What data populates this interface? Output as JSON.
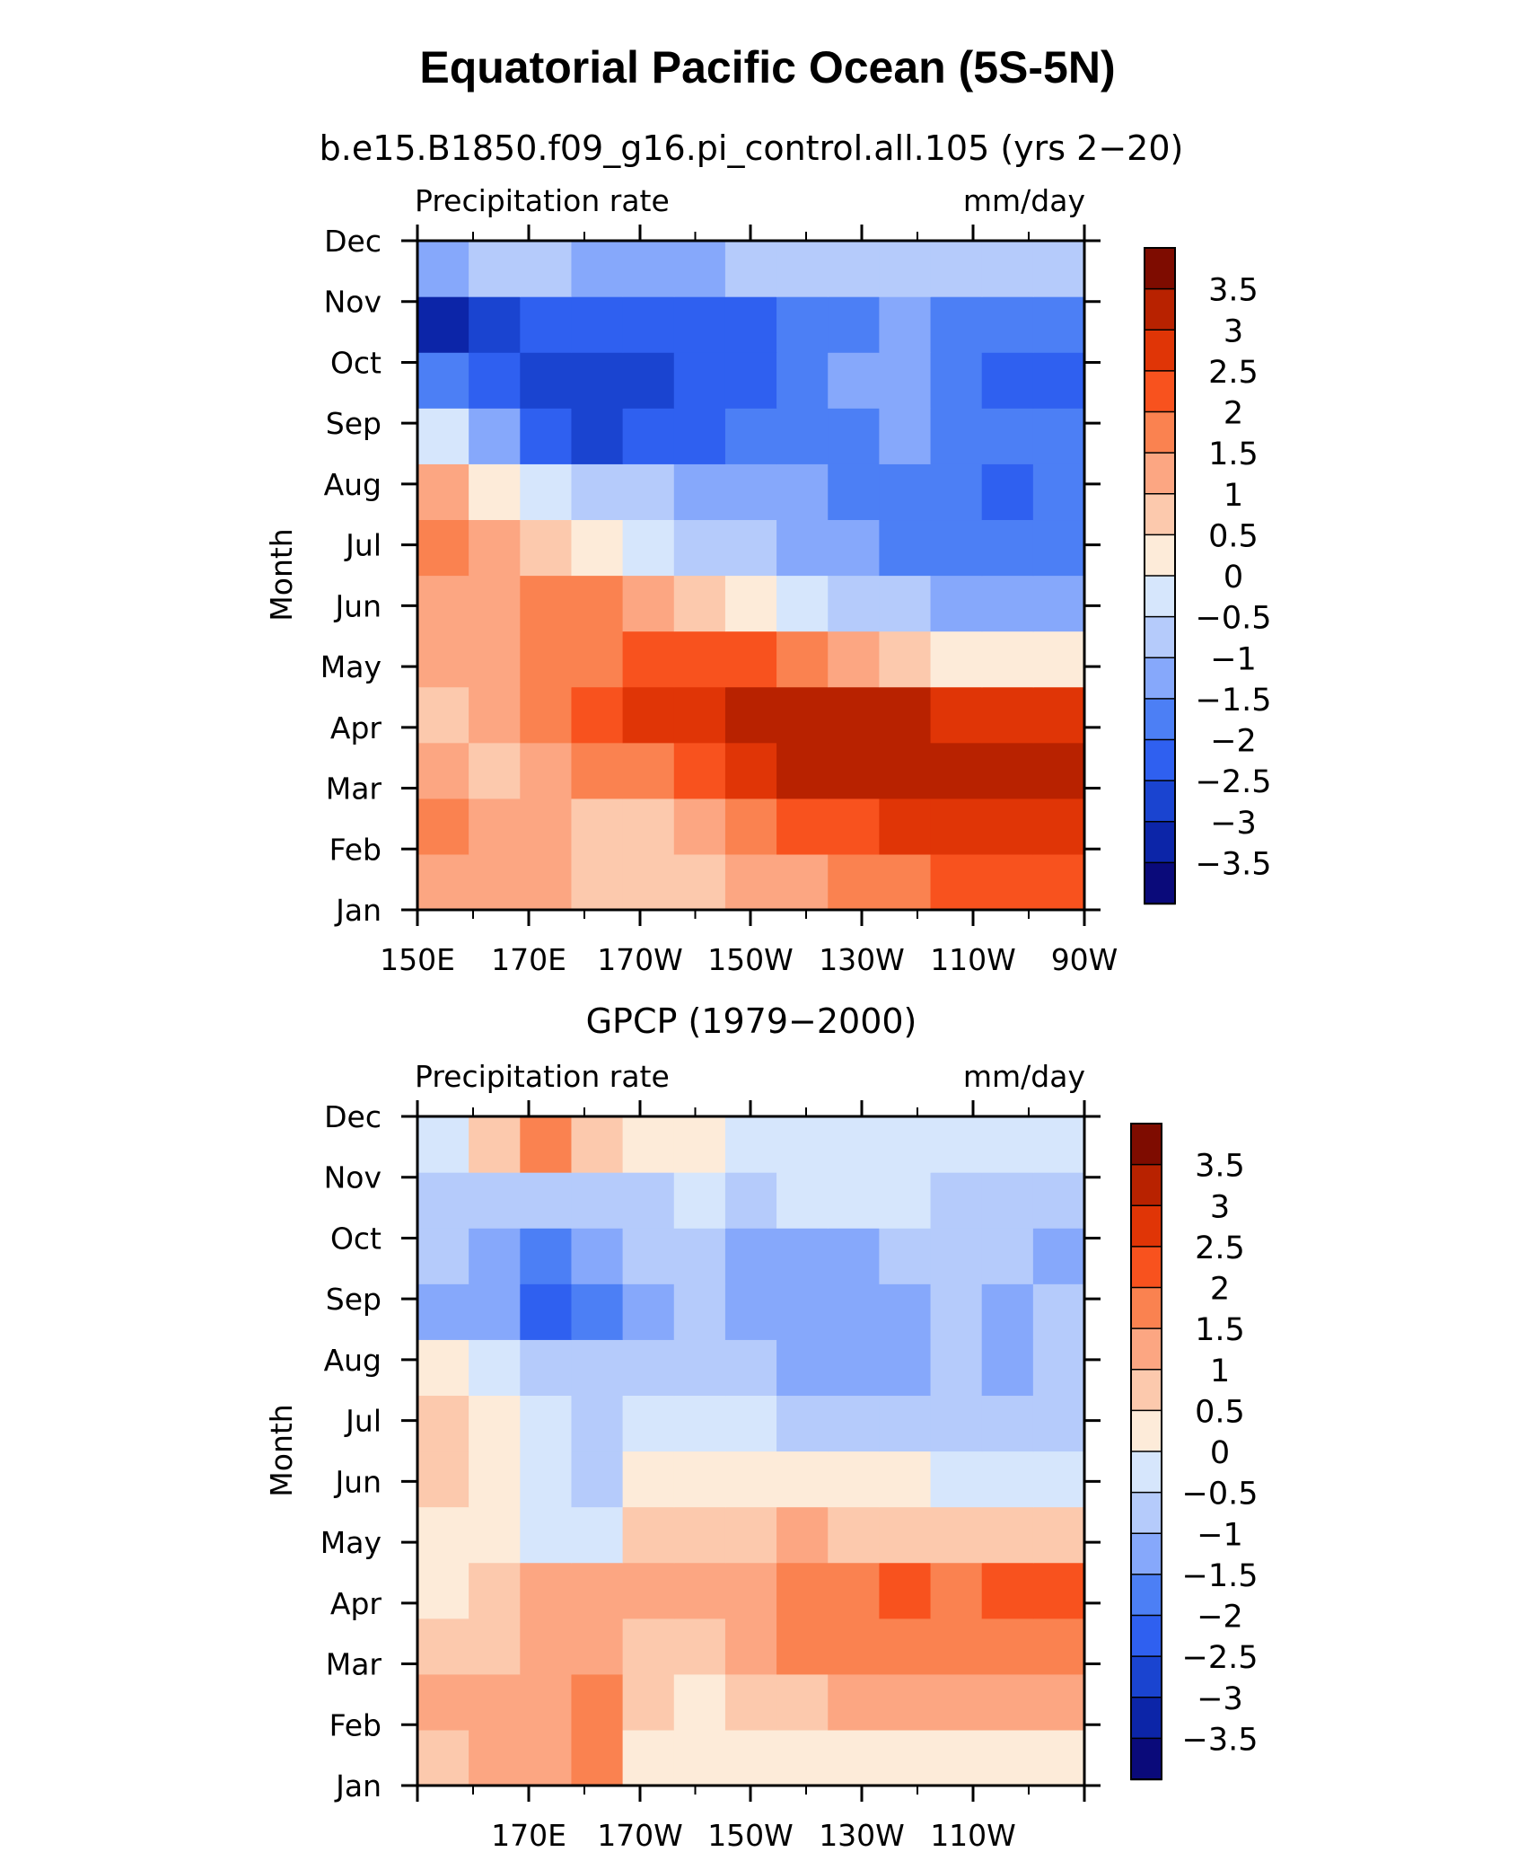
{
  "title": "Equatorial Pacific Ocean (5S-5N)",
  "colorbar": {
    "levels": [
      "3.5",
      "3",
      "2.5",
      "2",
      "1.5",
      "1",
      "0.5",
      "0",
      "−0.5",
      "−1",
      "−1.5",
      "−2",
      "−2.5",
      "−3",
      "−3.5"
    ],
    "colors": [
      "#0a0a7a",
      "#0c25a8",
      "#1a44d0",
      "#2f60f0",
      "#4c7ff5",
      "#86a8fb",
      "#b5cbfb",
      "#d6e6fc",
      "#fdebd9",
      "#fcc9ad",
      "#fca682",
      "#fa8250",
      "#f8521e",
      "#e03506",
      "#b82200",
      "#7e0c00"
    ]
  },
  "panels": [
    {
      "subtitle": "b.e15.B1850.f09_g16.pi_control.all.105 (yrs 2−20)",
      "left_label": "Precipitation rate",
      "right_label": "mm/day",
      "ylabel": "Month",
      "months": [
        "Jan",
        "Feb",
        "Mar",
        "Apr",
        "May",
        "Jun",
        "Jul",
        "Aug",
        "Sep",
        "Oct",
        "Nov",
        "Dec"
      ],
      "xticks": [
        "150E",
        "170E",
        "170W",
        "150W",
        "130W",
        "110W",
        "90W"
      ]
    },
    {
      "subtitle": "GPCP (1979−2000)",
      "left_label": "Precipitation rate",
      "right_label": "mm/day",
      "ylabel": "Month",
      "months": [
        "Jan",
        "Feb",
        "Mar",
        "Apr",
        "May",
        "Jun",
        "Jul",
        "Aug",
        "Sep",
        "Oct",
        "Nov",
        "Dec"
      ],
      "xticks": [
        "170E",
        "170W",
        "150W",
        "130W",
        "110W"
      ]
    }
  ],
  "chart_data": [
    {
      "type": "heatmap",
      "title": "b.e15.B1850.f09_g16.pi_control.all.105 (yrs 2−20)",
      "xlabel": "",
      "ylabel": "Month",
      "units": "mm/day",
      "x": [
        150,
        160,
        170,
        180,
        190,
        200,
        210,
        220,
        230,
        240,
        250,
        260,
        270
      ],
      "y": [
        "Jan",
        "Feb",
        "Mar",
        "Apr",
        "May",
        "Jun",
        "Jul",
        "Aug",
        "Sep",
        "Oct",
        "Nov",
        "Dec"
      ],
      "values": [
        [
          1.3,
          1.1,
          1.4,
          0.6,
          0.8,
          0.9,
          1.0,
          1.2,
          1.6,
          1.8,
          2.0,
          2.2,
          2.3
        ],
        [
          1.6,
          1.4,
          1.2,
          0.9,
          0.6,
          1.1,
          1.6,
          2.0,
          2.4,
          2.6,
          2.7,
          2.8,
          2.9
        ],
        [
          1.0,
          0.6,
          1.3,
          1.5,
          1.8,
          2.2,
          2.6,
          3.0,
          3.1,
          3.2,
          3.1,
          3.2,
          3.3
        ],
        [
          0.7,
          1.2,
          1.6,
          2.0,
          2.5,
          2.8,
          3.0,
          3.3,
          3.3,
          3.1,
          2.9,
          2.8,
          2.7
        ],
        [
          1.2,
          1.0,
          1.5,
          1.8,
          2.1,
          2.3,
          2.1,
          1.8,
          1.3,
          0.9,
          0.4,
          0.2,
          0.3
        ],
        [
          1.4,
          1.2,
          1.6,
          1.5,
          1.2,
          0.8,
          0.2,
          -0.3,
          -0.7,
          -1.0,
          -1.2,
          -1.2,
          -1.1
        ],
        [
          1.9,
          1.2,
          0.6,
          0.2,
          -0.2,
          -0.6,
          -0.9,
          -1.2,
          -1.4,
          -1.6,
          -1.8,
          -2.0,
          -1.8
        ],
        [
          1.2,
          0.3,
          -0.4,
          -0.8,
          -1.0,
          -1.2,
          -1.4,
          -1.5,
          -1.6,
          -1.7,
          -1.8,
          -2.1,
          -1.9
        ],
        [
          -0.3,
          -1.2,
          -2.3,
          -2.6,
          -2.4,
          -2.1,
          -2.0,
          -1.7,
          -1.6,
          -1.5,
          -1.7,
          -2.0,
          -2.0
        ],
        [
          -1.9,
          -2.3,
          -2.8,
          -2.8,
          -2.6,
          -2.2,
          -2.1,
          -1.8,
          -1.5,
          -1.3,
          -1.6,
          -2.1,
          -2.2
        ],
        [
          -3.1,
          -2.6,
          -2.4,
          -2.4,
          -2.3,
          -2.3,
          -2.2,
          -2.0,
          -1.7,
          -1.4,
          -1.6,
          -1.9,
          -2.0
        ],
        [
          -1.1,
          -0.6,
          -0.8,
          -1.2,
          -1.3,
          -1.2,
          -1.0,
          -0.9,
          -0.8,
          -0.8,
          -0.8,
          -0.9,
          -0.9
        ]
      ],
      "levels": [
        -3.5,
        -3,
        -2.5,
        -2,
        -1.5,
        -1,
        -0.5,
        0,
        0.5,
        1,
        1.5,
        2,
        2.5,
        3,
        3.5
      ]
    },
    {
      "type": "heatmap",
      "title": "GPCP (1979−2000)",
      "xlabel": "",
      "ylabel": "Month",
      "units": "mm/day",
      "x": [
        150,
        160,
        170,
        180,
        190,
        200,
        210,
        220,
        230,
        240,
        250,
        260,
        270
      ],
      "y": [
        "Jan",
        "Feb",
        "Mar",
        "Apr",
        "May",
        "Jun",
        "Jul",
        "Aug",
        "Sep",
        "Oct",
        "Nov",
        "Dec"
      ],
      "values": [
        [
          0.6,
          1.0,
          1.4,
          1.7,
          0.4,
          0.2,
          0.2,
          0.2,
          0.1,
          0.1,
          0.2,
          0.2,
          0.3
        ],
        [
          1.2,
          1.0,
          1.2,
          1.5,
          0.5,
          0.4,
          0.8,
          0.9,
          1.0,
          1.0,
          1.1,
          1.2,
          1.3
        ],
        [
          0.6,
          0.9,
          1.3,
          1.4,
          0.5,
          0.8,
          1.3,
          1.6,
          1.7,
          1.8,
          1.7,
          1.8,
          1.9
        ],
        [
          0.3,
          0.6,
          1.1,
          1.2,
          1.1,
          1.0,
          1.2,
          1.6,
          1.8,
          2.0,
          1.6,
          2.0,
          2.0
        ],
        [
          0.2,
          0.2,
          -0.3,
          -0.4,
          0.6,
          0.8,
          0.9,
          1.0,
          0.9,
          0.8,
          0.7,
          0.6,
          0.7
        ],
        [
          0.7,
          0.2,
          -0.5,
          -0.7,
          0.1,
          0.3,
          0.4,
          0.2,
          0.1,
          0.0,
          -0.1,
          -0.1,
          -0.2
        ],
        [
          0.8,
          0.3,
          -0.5,
          -0.7,
          -0.5,
          -0.3,
          -0.4,
          -0.6,
          -0.7,
          -0.8,
          -0.8,
          -1.0,
          -0.8
        ],
        [
          0.4,
          -0.4,
          -0.7,
          -0.8,
          -0.9,
          -1.0,
          -1.0,
          -1.2,
          -1.2,
          -1.2,
          -0.9,
          -1.1,
          -0.9
        ],
        [
          -1.1,
          -1.2,
          -2.1,
          -1.6,
          -1.1,
          -0.9,
          -1.2,
          -1.3,
          -1.3,
          -1.2,
          -0.9,
          -1.1,
          -1.0
        ],
        [
          -1.0,
          -1.1,
          -1.6,
          -1.4,
          -0.9,
          -0.8,
          -1.1,
          -1.2,
          -1.1,
          -0.9,
          -0.8,
          -1.0,
          -1.1
        ],
        [
          -0.6,
          -0.8,
          -0.7,
          -0.6,
          -0.6,
          -0.5,
          -0.6,
          -0.5,
          -0.4,
          -0.5,
          -0.6,
          -0.6,
          -0.6
        ],
        [
          -0.2,
          0.6,
          1.6,
          0.7,
          0.4,
          0.2,
          -0.3,
          -0.4,
          -0.3,
          -0.3,
          -0.3,
          -0.3,
          -0.3
        ]
      ],
      "levels": [
        -3.5,
        -3,
        -2.5,
        -2,
        -1.5,
        -1,
        -0.5,
        0,
        0.5,
        1,
        1.5,
        2,
        2.5,
        3,
        3.5
      ]
    }
  ]
}
